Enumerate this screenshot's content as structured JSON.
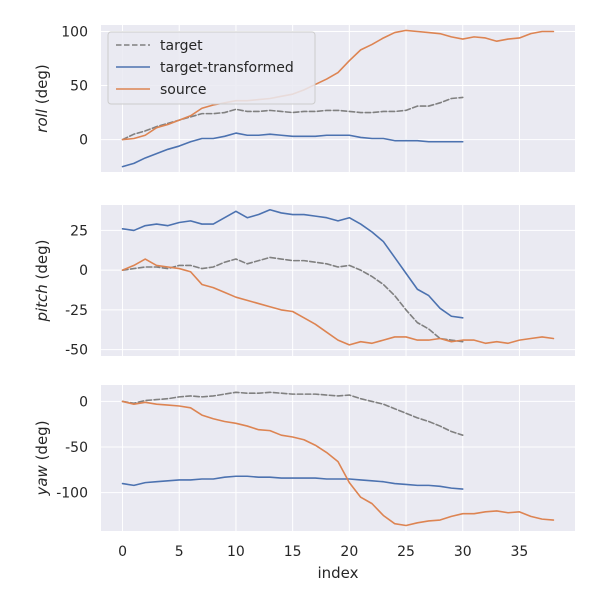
{
  "chart_data": {
    "type": "line",
    "xlabel": "index",
    "x_ticks": [
      0,
      5,
      10,
      15,
      20,
      25,
      30,
      35
    ],
    "xlim": [
      -1.9,
      39.9
    ],
    "grid": true,
    "legend": {
      "placement": "top-left",
      "entries": [
        "target",
        "target-transformed",
        "source"
      ]
    },
    "colors": {
      "target": "#808080",
      "target-transformed": "#4c72b0",
      "source": "#dd8452",
      "background": "#eaeaf2"
    },
    "panels": [
      {
        "angle": "roll",
        "ylabel": "(deg)",
        "ylim": [
          -30,
          106
        ],
        "y_ticks": [
          0,
          50,
          100
        ],
        "series": [
          {
            "name": "target",
            "style": "dashed",
            "values": [
              0,
              5,
              8,
              12,
              15,
              18,
              21,
              24,
              24,
              25,
              28,
              26,
              26,
              27,
              26,
              25,
              26,
              26,
              27,
              27,
              26,
              25,
              25,
              26,
              26,
              27,
              31,
              31,
              34,
              38,
              39
            ]
          },
          {
            "name": "target-transformed",
            "style": "solid",
            "values": [
              -25,
              -22,
              -17,
              -13,
              -9,
              -6,
              -2,
              1,
              1,
              3,
              6,
              4,
              4,
              5,
              4,
              3,
              3,
              3,
              4,
              4,
              4,
              2,
              1,
              1,
              -1,
              -1,
              -1,
              -2,
              -2,
              -2,
              -2
            ]
          },
          {
            "name": "source",
            "style": "solid",
            "values": [
              0,
              1,
              4,
              11,
              14,
              18,
              22,
              29,
              32,
              34,
              36,
              36,
              37,
              38,
              40,
              42,
              46,
              51,
              56,
              62,
              73,
              83,
              88,
              94,
              99,
              101,
              100,
              99,
              98,
              95,
              93,
              95,
              94,
              91,
              93,
              94,
              98,
              100,
              100
            ]
          }
        ]
      },
      {
        "angle": "pitch",
        "ylabel": "(deg)",
        "ylim": [
          -54,
          41
        ],
        "y_ticks": [
          -50,
          -25,
          0,
          25
        ],
        "series": [
          {
            "name": "target",
            "style": "dashed",
            "values": [
              0,
              1,
              2,
              2,
              1,
              3,
              3,
              1,
              2,
              5,
              7,
              4,
              6,
              8,
              7,
              6,
              6,
              5,
              4,
              2,
              3,
              0,
              -4,
              -9,
              -16,
              -25,
              -33,
              -37,
              -43,
              -44,
              -45
            ]
          },
          {
            "name": "target-transformed",
            "style": "solid",
            "values": [
              26,
              25,
              28,
              29,
              28,
              30,
              31,
              29,
              29,
              33,
              37,
              33,
              35,
              38,
              36,
              35,
              35,
              34,
              33,
              31,
              33,
              29,
              24,
              18,
              8,
              -2,
              -12,
              -16,
              -24,
              -29,
              -30
            ]
          },
          {
            "name": "source",
            "style": "solid",
            "values": [
              0,
              3,
              7,
              3,
              2,
              1,
              -1,
              -9,
              -11,
              -14,
              -17,
              -19,
              -21,
              -23,
              -25,
              -26,
              -30,
              -34,
              -39,
              -44,
              -47,
              -45,
              -46,
              -44,
              -42,
              -42,
              -44,
              -44,
              -43,
              -45,
              -44,
              -44,
              -46,
              -45,
              -46,
              -44,
              -43,
              -42,
              -43
            ]
          }
        ]
      },
      {
        "angle": "yaw",
        "ylabel": "(deg)",
        "ylim": [
          -142,
          18
        ],
        "y_ticks": [
          -100,
          -50,
          0
        ],
        "series": [
          {
            "name": "target",
            "style": "dashed",
            "values": [
              0,
              -2,
              1,
              2,
              3,
              5,
              6,
              5,
              6,
              8,
              10,
              9,
              9,
              10,
              9,
              8,
              8,
              8,
              7,
              6,
              7,
              3,
              0,
              -3,
              -8,
              -13,
              -18,
              -22,
              -27,
              -33,
              -37
            ]
          },
          {
            "name": "target-transformed",
            "style": "solid",
            "values": [
              -90,
              -92,
              -89,
              -88,
              -87,
              -86,
              -86,
              -85,
              -85,
              -83,
              -82,
              -82,
              -83,
              -83,
              -84,
              -84,
              -84,
              -84,
              -85,
              -85,
              -85,
              -86,
              -87,
              -88,
              -90,
              -91,
              -92,
              -92,
              -93,
              -95,
              -96
            ]
          },
          {
            "name": "source",
            "style": "solid",
            "values": [
              0,
              -3,
              -1,
              -3,
              -4,
              -5,
              -7,
              -15,
              -19,
              -22,
              -24,
              -27,
              -31,
              -32,
              -37,
              -39,
              -42,
              -48,
              -56,
              -66,
              -89,
              -105,
              -112,
              -125,
              -134,
              -136,
              -133,
              -131,
              -130,
              -126,
              -123,
              -123,
              -121,
              -120,
              -122,
              -121,
              -126,
              -129,
              -130
            ]
          }
        ]
      }
    ]
  }
}
